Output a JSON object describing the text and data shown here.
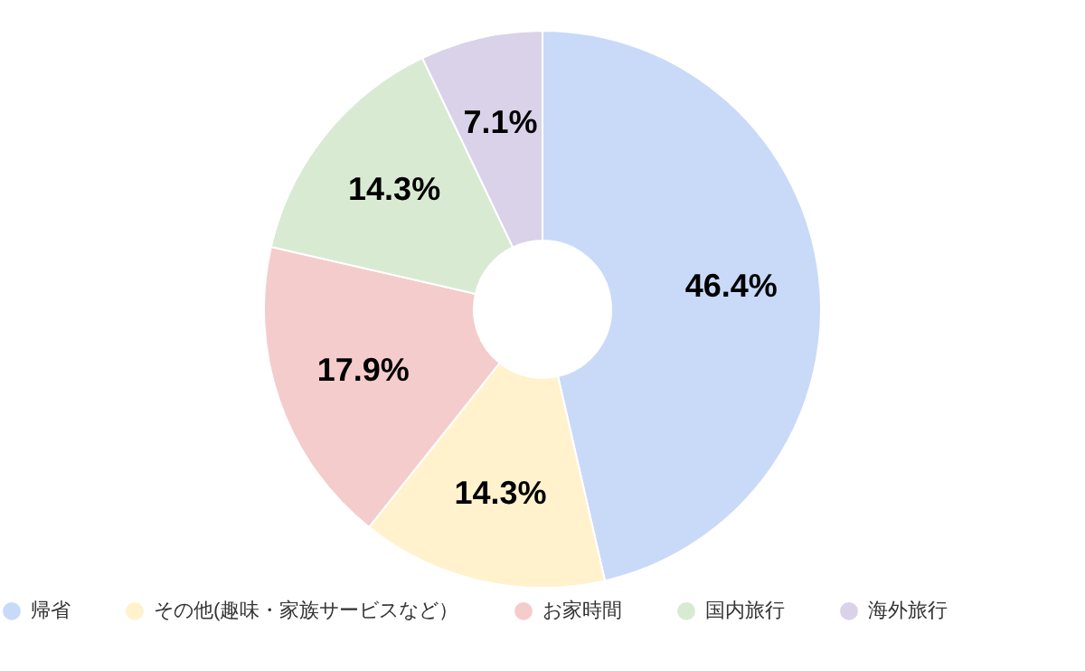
{
  "chart_data": {
    "type": "donut",
    "categories": [
      "帰省",
      "その他(趣味・家族サービスなど）",
      "お家時間",
      "国内旅行",
      "海外旅行"
    ],
    "values": [
      46.4,
      14.3,
      17.9,
      14.3,
      7.1
    ],
    "colors": [
      "#c9daf8",
      "#fff2cc",
      "#f4cccc",
      "#d9ead3",
      "#d9d2e9"
    ],
    "value_labels": [
      "46.4%",
      "14.3%",
      "17.9%",
      "14.3%",
      "7.1%"
    ],
    "legend": "bottom"
  }
}
